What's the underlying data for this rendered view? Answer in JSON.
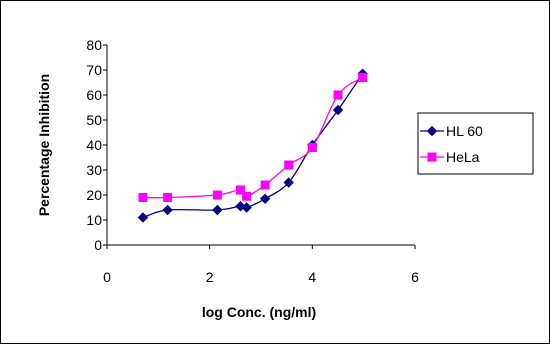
{
  "chart_data": {
    "type": "line",
    "title": "",
    "xlabel": "log Conc. (ng/ml)",
    "ylabel": "Percentage Inhibition",
    "xlim": [
      0,
      6
    ],
    "ylim": [
      0,
      80
    ],
    "xticks": [
      "0",
      "2",
      "4",
      "6"
    ],
    "yticks": [
      "0",
      "10",
      "20",
      "30",
      "40",
      "50",
      "60",
      "70",
      "80"
    ],
    "grid": false,
    "legend_position": "right",
    "series": [
      {
        "name": "HL 60",
        "color": "#000080",
        "marker": "diamond",
        "points": [
          [
            0.7,
            11
          ],
          [
            1.18,
            14
          ],
          [
            2.15,
            14
          ],
          [
            2.6,
            15.5
          ],
          [
            2.72,
            15
          ],
          [
            3.08,
            18.5
          ],
          [
            3.54,
            25
          ],
          [
            4.0,
            40
          ],
          [
            4.5,
            54
          ],
          [
            4.98,
            68.5
          ]
        ]
      },
      {
        "name": "HeLa",
        "color": "#FF00FF",
        "marker": "square",
        "points": [
          [
            0.7,
            19
          ],
          [
            1.18,
            19
          ],
          [
            2.15,
            20
          ],
          [
            2.6,
            22
          ],
          [
            2.72,
            19.5
          ],
          [
            3.08,
            24
          ],
          [
            3.54,
            32
          ],
          [
            4.0,
            39
          ],
          [
            4.5,
            60
          ],
          [
            4.98,
            67
          ]
        ]
      }
    ]
  }
}
